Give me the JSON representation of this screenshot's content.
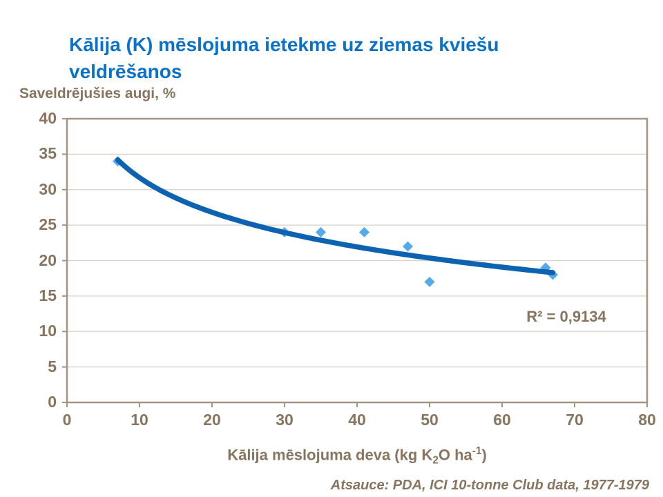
{
  "title": {
    "text": "Kālija (K) mēslojuma ietekme uz ziemas kviešu veldrēšanos",
    "color": "#0a72c8"
  },
  "footer": {
    "text": "Atsauce: PDA, ICI 10-tonne Club data, 1977-1979"
  },
  "chart_data": {
    "type": "scatter",
    "title": "Kālija (K) mēslojuma ietekme uz ziemas kviešu veldrēšanos",
    "ylabel": "Saveldrējušies augi, %",
    "xlabel": "Kālija mēslojuma deva (kg K2O ha-1)",
    "xlabel_parts": {
      "pre": "Kālija mēslojuma deva (kg K",
      "sub": "2",
      "mid": "O ha",
      "sup": "-1",
      "post": ")"
    },
    "xlim": [
      0,
      80
    ],
    "ylim": [
      0,
      40
    ],
    "xticks": [
      0,
      10,
      20,
      30,
      40,
      50,
      60,
      70,
      80
    ],
    "yticks": [
      0,
      5,
      10,
      15,
      20,
      25,
      30,
      35,
      40
    ],
    "grid": "horizontal-only",
    "legend": "none",
    "points": [
      [
        7,
        34
      ],
      [
        30,
        24
      ],
      [
        35,
        24
      ],
      [
        41,
        24
      ],
      [
        47,
        22
      ],
      [
        50,
        17
      ],
      [
        66,
        19
      ],
      [
        67,
        18
      ]
    ],
    "trendline": {
      "type": "logarithmic",
      "equation": "y = 47.9 - 7.04*ln(x)",
      "a": 47.9,
      "b": -7.04,
      "x_range": [
        7,
        67
      ],
      "r2": 0.9134,
      "r2_label": "R² = 0,9134"
    },
    "colors": {
      "marker": "#56a9ea",
      "trendline": "#0e63b0",
      "axis_text": "#87755f",
      "plot_border": "#a49484",
      "gridline": "#d9d0c7",
      "title": "#0a72c8"
    }
  }
}
